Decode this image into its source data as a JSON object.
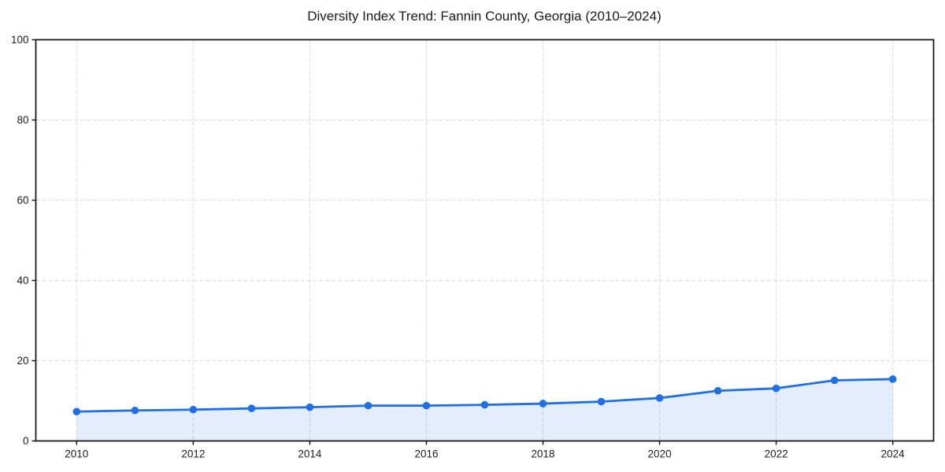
{
  "chart_data": {
    "type": "area",
    "title": "Diversity Index Trend: Fannin County, Georgia (2010–2024)",
    "xlabel": "",
    "ylabel": "",
    "x": [
      2010,
      2011,
      2012,
      2013,
      2014,
      2015,
      2016,
      2017,
      2018,
      2019,
      2020,
      2021,
      2022,
      2023,
      2024
    ],
    "series": [
      {
        "name": "Diversity Index",
        "values": [
          7.3,
          7.6,
          7.8,
          8.1,
          8.4,
          8.8,
          8.8,
          9.0,
          9.3,
          9.8,
          10.7,
          12.5,
          13.1,
          15.1,
          15.4
        ]
      }
    ],
    "ylim": [
      0,
      100
    ],
    "yticks": [
      0,
      20,
      40,
      60,
      80,
      100
    ],
    "xticks": [
      2010,
      2012,
      2014,
      2016,
      2018,
      2020,
      2022,
      2024
    ],
    "grid": true,
    "grid_style": "dashed",
    "legend": false,
    "marker": "circle",
    "colors": {
      "line": "#1e6fe8",
      "fill": "#1e6fe81f",
      "grid": "#dedede",
      "axis": "#1a1a1a",
      "text": "#1c1c1c",
      "background": "#ffffff"
    }
  }
}
